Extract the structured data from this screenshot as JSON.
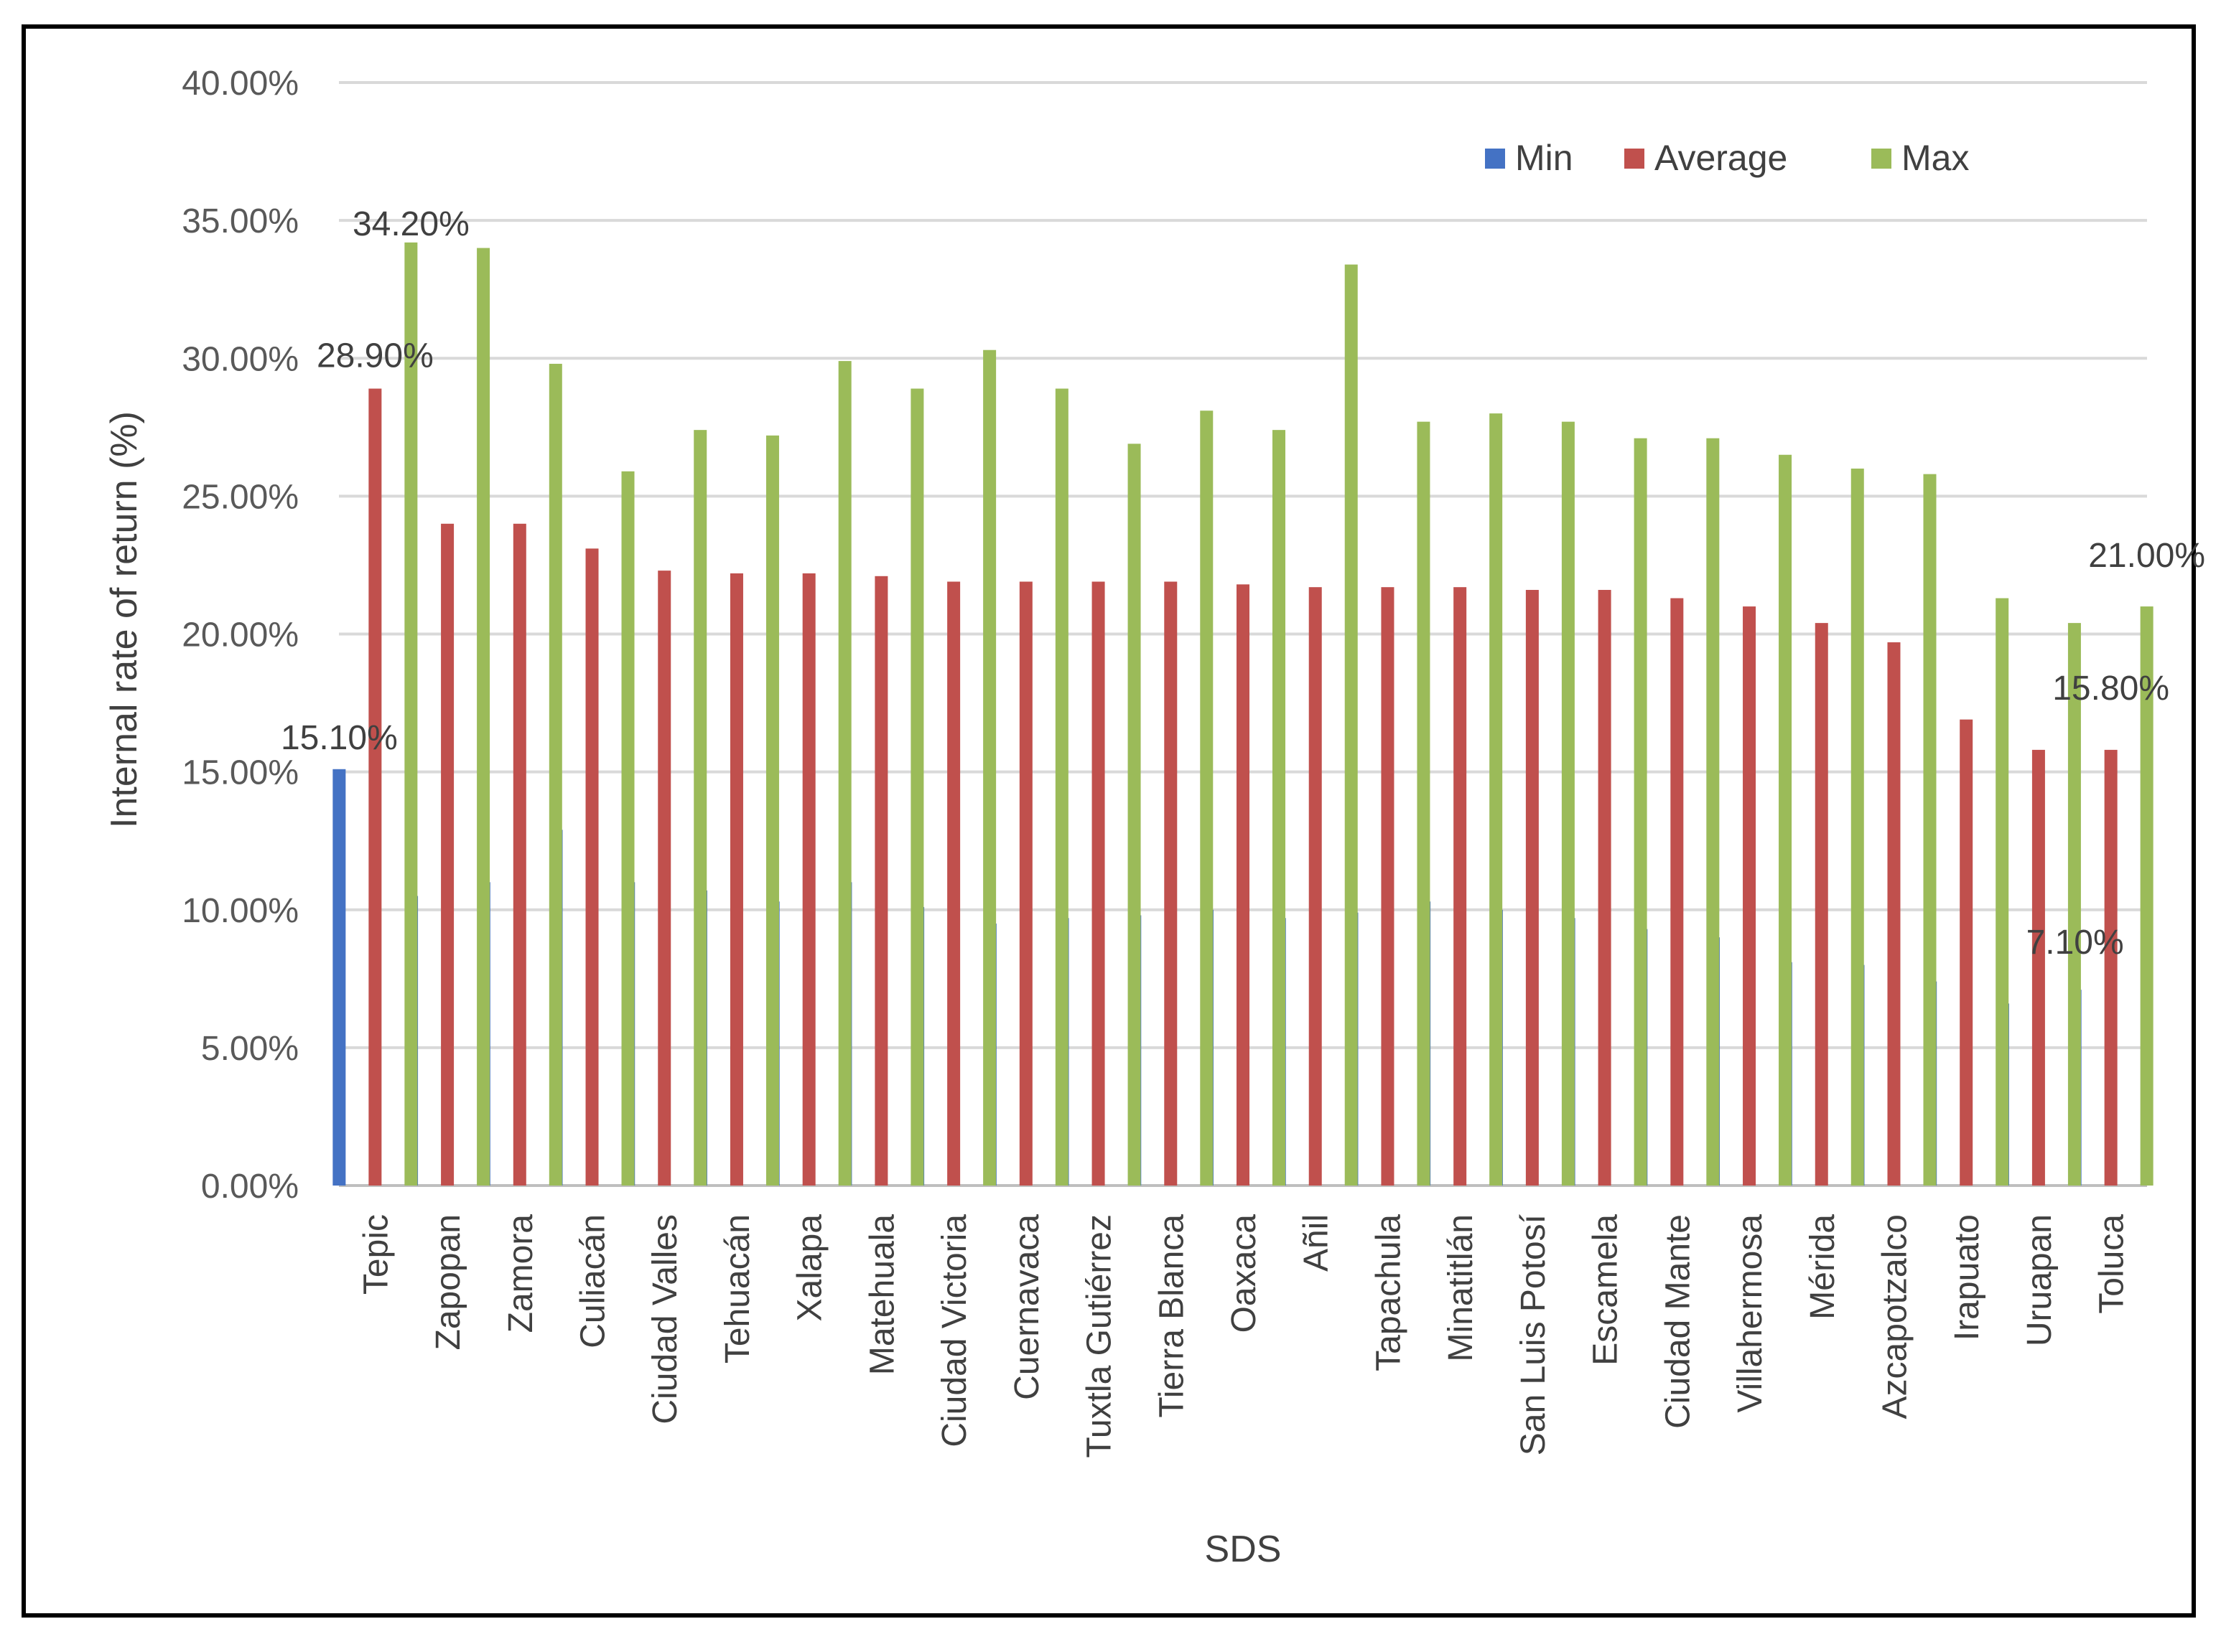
{
  "chart_data": {
    "type": "bar",
    "title": "",
    "xlabel": "SDS",
    "ylabel": "Internal rate of return (%)",
    "ylim": [
      0,
      40
    ],
    "ytick_step": 5,
    "ytick_labels": [
      "0.00%",
      "5.00%",
      "10.00%",
      "15.00%",
      "20.00%",
      "25.00%",
      "30.00%",
      "35.00%",
      "40.00%"
    ],
    "grid": true,
    "legend_position": "top-right",
    "categories": [
      "Tepic",
      "Zapopan",
      "Zamora",
      "Culiacán",
      "Ciudad Valles",
      "Tehuacán",
      "Xalapa",
      "Matehuala",
      "Ciudad Victoria",
      "Cuernavaca",
      "Tuxtla Gutiérrez",
      "Tierra Blanca",
      "Oaxaca",
      "Añil",
      "Tapachula",
      "Minatitlán",
      "San Luis Potosí",
      "Escamela",
      "Ciudad Mante",
      "Villahermosa",
      "Mérida",
      "Azcapotzalco",
      "Irapuato",
      "Uruapan",
      "Toluca"
    ],
    "series": [
      {
        "name": "Min",
        "color": "#4472C4",
        "values": [
          15.1,
          10.5,
          11.0,
          12.9,
          11.0,
          10.7,
          10.3,
          11.0,
          10.1,
          9.5,
          9.7,
          9.8,
          10.0,
          9.7,
          9.9,
          10.3,
          10.0,
          9.7,
          9.3,
          9.0,
          8.1,
          8.0,
          7.4,
          6.6,
          7.1
        ]
      },
      {
        "name": "Average",
        "color": "#C0504D",
        "values": [
          28.9,
          24.0,
          24.0,
          23.1,
          22.3,
          22.2,
          22.2,
          22.1,
          21.9,
          21.9,
          21.9,
          21.9,
          21.8,
          21.7,
          21.7,
          21.7,
          21.6,
          21.6,
          21.3,
          21.0,
          20.4,
          19.7,
          16.9,
          15.8,
          15.8
        ]
      },
      {
        "name": "Max",
        "color": "#9BBB59",
        "values": [
          34.2,
          34.0,
          29.8,
          25.9,
          27.4,
          27.2,
          29.9,
          28.9,
          30.3,
          28.9,
          26.9,
          28.1,
          27.4,
          33.4,
          27.7,
          28.0,
          27.7,
          27.1,
          27.1,
          26.5,
          26.0,
          25.8,
          21.3,
          20.4,
          21.0
        ]
      }
    ],
    "annotations": [
      {
        "series": "Max",
        "category": "Tepic",
        "text": "34.20%"
      },
      {
        "series": "Average",
        "category": "Tepic",
        "text": "28.90%"
      },
      {
        "series": "Min",
        "category": "Tepic",
        "text": "15.10%"
      },
      {
        "series": "Max",
        "category": "Toluca",
        "text": "21.00%"
      },
      {
        "series": "Average",
        "category": "Toluca",
        "text": "15.80%"
      },
      {
        "series": "Min",
        "category": "Toluca",
        "text": "7.10%"
      }
    ]
  }
}
